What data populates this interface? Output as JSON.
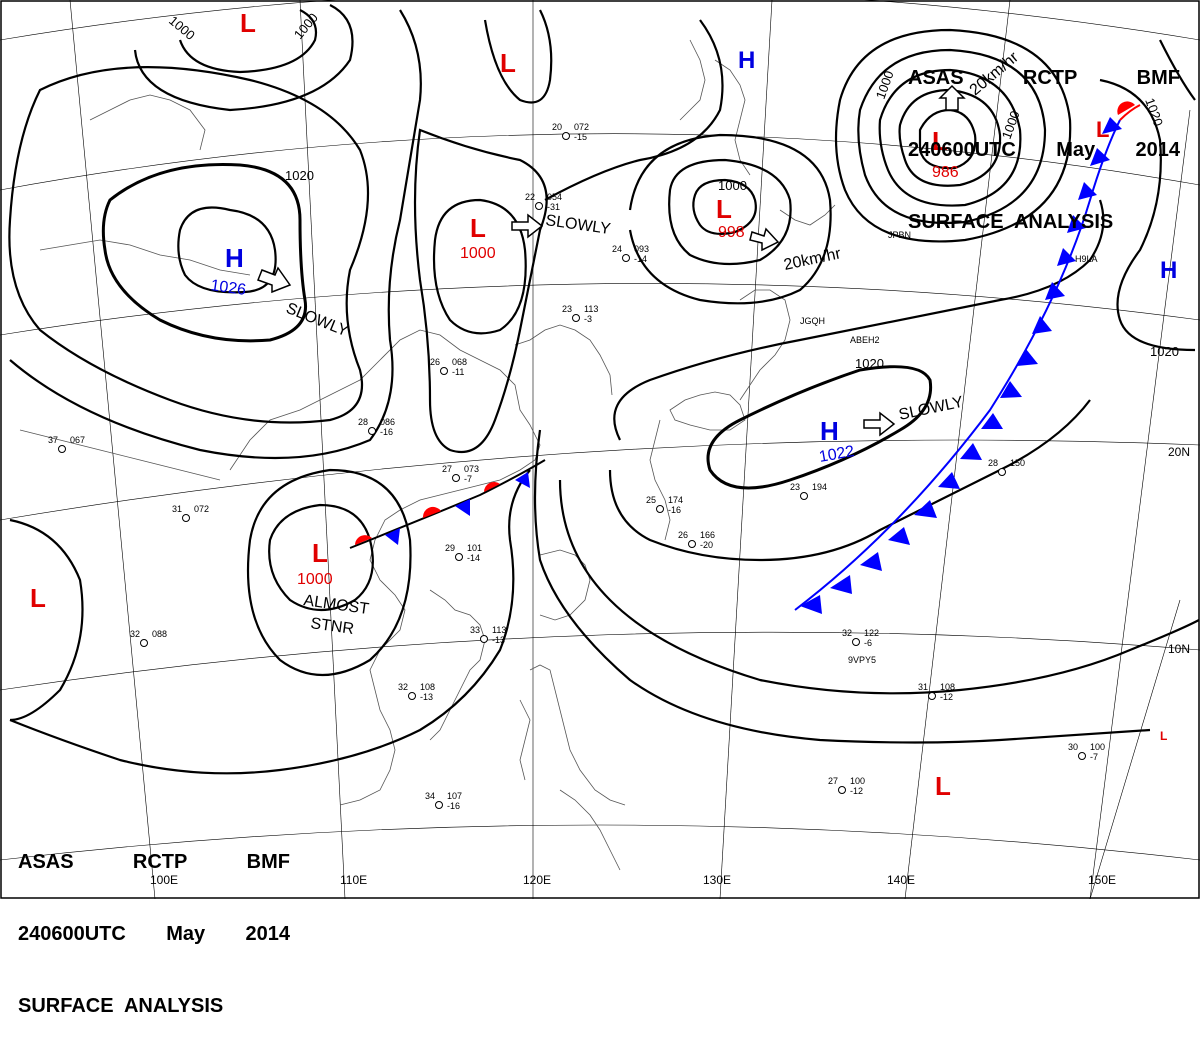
{
  "header": {
    "line1": [
      "ASAS",
      "RCTP",
      "BMF"
    ],
    "line2": [
      "240600UTC",
      "May",
      "2014"
    ],
    "line3": "SURFACE  ANALYSIS"
  },
  "lon_labels": [
    "100E",
    "110E",
    "120E",
    "130E",
    "140E",
    "150E"
  ],
  "lat_labels": [
    "20N",
    "10N"
  ],
  "pressure_centers": [
    {
      "type": "L",
      "value": "1000"
    },
    {
      "type": "L",
      "value": "998"
    },
    {
      "type": "L",
      "value": "986"
    },
    {
      "type": "L",
      "value": "1000"
    },
    {
      "type": "H",
      "value": "1026"
    },
    {
      "type": "H",
      "value": "1022"
    },
    {
      "type": "H",
      "value": ""
    },
    {
      "type": "H",
      "value": ""
    },
    {
      "type": "L",
      "value": ""
    },
    {
      "type": "L",
      "value": ""
    },
    {
      "type": "L",
      "value": ""
    },
    {
      "type": "L",
      "value": ""
    },
    {
      "type": "L",
      "value": ""
    },
    {
      "type": "L",
      "value": ""
    }
  ],
  "isobar_labels": [
    "1000",
    "1000",
    "1020",
    "1000",
    "1000",
    "1020",
    "1020",
    "1020"
  ],
  "motion_labels": [
    "SLOWLY",
    "SLOWLY",
    "SLOWLY",
    "20km/hr",
    "20km/hr",
    "ALMOST",
    "STNR"
  ],
  "station_samples": [
    {
      "t": "20",
      "p": "072",
      "d": "-15"
    },
    {
      "t": "24",
      "p": "093",
      "d": "-14"
    },
    {
      "t": "23",
      "p": "113",
      "d": "-3"
    },
    {
      "t": "28",
      "p": "086",
      "d": "-16"
    },
    {
      "t": "27",
      "p": "073",
      "d": "-7"
    },
    {
      "t": "29",
      "p": "101",
      "d": "-14"
    },
    {
      "t": "33",
      "p": "113",
      "d": "-13"
    },
    {
      "t": "32",
      "p": "108",
      "d": "-13"
    },
    {
      "t": "34",
      "p": "107",
      "d": "-16"
    },
    {
      "t": "26",
      "p": "068",
      "d": "-11"
    },
    {
      "t": "25",
      "p": "174",
      "d": "-16"
    },
    {
      "t": "26",
      "p": "166",
      "d": "-20"
    },
    {
      "t": "31",
      "p": "072",
      "d": ""
    },
    {
      "t": "37",
      "p": "067",
      "d": ""
    },
    {
      "t": "32",
      "p": "088",
      "d": ""
    },
    {
      "t": "23",
      "p": "194",
      "d": ""
    },
    {
      "t": "28",
      "p": "150",
      "d": ""
    },
    {
      "t": "31",
      "p": "108",
      "d": "-12"
    },
    {
      "t": "32",
      "p": "122",
      "d": "-6"
    },
    {
      "t": "27",
      "p": "100",
      "d": "-12"
    },
    {
      "t": "30",
      "p": "100",
      "d": "-7"
    },
    {
      "t": "22",
      "p": "054",
      "d": "-31"
    }
  ],
  "station_ids": [
    "JPBN",
    "ABEH2",
    "JGQH",
    "H9LA",
    "9VPY5"
  ],
  "colors": {
    "low": "#e00000",
    "high": "#0000e0",
    "cold_front": "#0000ff",
    "warm_front": "#ff0000",
    "lines": "#000000",
    "coast": "#555555"
  }
}
